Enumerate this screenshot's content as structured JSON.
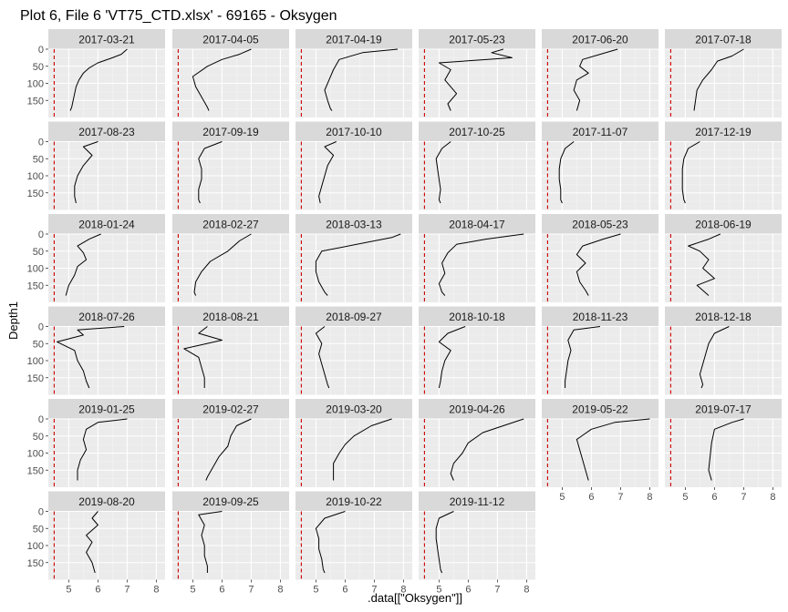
{
  "chart_data": {
    "type": "line",
    "title": "Plot 6, File 6 'VT75_CTD.xlsx' - 69165  -  Oksygen",
    "xlabel": ".data[[\"Oksygen\"]]",
    "ylabel": "Depth1",
    "xlim": [
      4.3,
      8.3
    ],
    "ylim": [
      0,
      200
    ],
    "y_reversed": true,
    "x_ticks": [
      5,
      6,
      7,
      8
    ],
    "y_ticks": [
      0,
      50,
      100,
      150
    ],
    "reference_line": {
      "x": 4.5,
      "color": "#cc0000",
      "style": "dashed"
    },
    "grid": true,
    "facets": [
      {
        "label": "2017-03-21",
        "profile": [
          [
            7.0,
            0
          ],
          [
            6.8,
            15
          ],
          [
            6.5,
            25
          ],
          [
            6.0,
            40
          ],
          [
            5.7,
            55
          ],
          [
            5.5,
            70
          ],
          [
            5.35,
            90
          ],
          [
            5.25,
            110
          ],
          [
            5.2,
            130
          ],
          [
            5.15,
            150
          ],
          [
            5.1,
            170
          ],
          [
            5.05,
            180
          ]
        ]
      },
      {
        "label": "2017-04-05",
        "profile": [
          [
            7.0,
            0
          ],
          [
            6.6,
            15
          ],
          [
            6.0,
            30
          ],
          [
            5.5,
            50
          ],
          [
            5.0,
            80
          ],
          [
            5.1,
            110
          ],
          [
            5.3,
            140
          ],
          [
            5.5,
            170
          ],
          [
            5.55,
            180
          ]
        ]
      },
      {
        "label": "2017-04-19",
        "profile": [
          [
            7.8,
            0
          ],
          [
            6.6,
            10
          ],
          [
            5.8,
            30
          ],
          [
            5.6,
            60
          ],
          [
            5.45,
            90
          ],
          [
            5.3,
            120
          ],
          [
            5.4,
            150
          ],
          [
            5.5,
            175
          ],
          [
            5.55,
            180
          ]
        ]
      },
      {
        "label": "2017-05-23",
        "profile": [
          [
            7.2,
            0
          ],
          [
            6.8,
            10
          ],
          [
            7.5,
            25
          ],
          [
            5.0,
            40
          ],
          [
            5.4,
            60
          ],
          [
            5.2,
            90
          ],
          [
            5.6,
            130
          ],
          [
            5.3,
            160
          ],
          [
            5.4,
            180
          ]
        ]
      },
      {
        "label": "2017-06-20",
        "profile": [
          [
            6.9,
            0
          ],
          [
            6.3,
            15
          ],
          [
            5.7,
            30
          ],
          [
            5.6,
            50
          ],
          [
            5.9,
            70
          ],
          [
            5.5,
            90
          ],
          [
            5.4,
            120
          ],
          [
            5.6,
            150
          ],
          [
            5.5,
            180
          ]
        ]
      },
      {
        "label": "2017-07-18",
        "profile": [
          [
            7.0,
            0
          ],
          [
            6.6,
            20
          ],
          [
            6.1,
            35
          ],
          [
            5.9,
            60
          ],
          [
            5.6,
            90
          ],
          [
            5.4,
            120
          ],
          [
            5.35,
            150
          ],
          [
            5.3,
            180
          ]
        ]
      },
      {
        "label": "2017-08-23",
        "profile": [
          [
            6.0,
            0
          ],
          [
            5.5,
            15
          ],
          [
            5.8,
            40
          ],
          [
            5.5,
            70
          ],
          [
            5.3,
            100
          ],
          [
            5.2,
            130
          ],
          [
            5.2,
            160
          ],
          [
            5.25,
            180
          ]
        ]
      },
      {
        "label": "2017-09-19",
        "profile": [
          [
            6.0,
            0
          ],
          [
            5.4,
            20
          ],
          [
            5.2,
            50
          ],
          [
            5.3,
            80
          ],
          [
            5.3,
            110
          ],
          [
            5.2,
            140
          ],
          [
            5.2,
            170
          ],
          [
            5.25,
            180
          ]
        ]
      },
      {
        "label": "2017-10-10",
        "profile": [
          [
            5.7,
            0
          ],
          [
            5.3,
            15
          ],
          [
            5.6,
            40
          ],
          [
            5.4,
            70
          ],
          [
            5.3,
            100
          ],
          [
            5.2,
            130
          ],
          [
            5.1,
            160
          ],
          [
            5.15,
            180
          ]
        ]
      },
      {
        "label": "2017-10-25",
        "profile": [
          [
            5.4,
            0
          ],
          [
            5.1,
            20
          ],
          [
            4.9,
            50
          ],
          [
            4.95,
            80
          ],
          [
            5.0,
            110
          ],
          [
            5.05,
            140
          ],
          [
            5.0,
            170
          ],
          [
            5.05,
            180
          ]
        ]
      },
      {
        "label": "2017-11-07",
        "profile": [
          [
            5.4,
            0
          ],
          [
            5.1,
            20
          ],
          [
            4.95,
            50
          ],
          [
            4.9,
            80
          ],
          [
            4.9,
            110
          ],
          [
            4.95,
            140
          ],
          [
            4.95,
            170
          ],
          [
            5.0,
            180
          ]
        ]
      },
      {
        "label": "2017-12-19",
        "profile": [
          [
            5.5,
            0
          ],
          [
            5.1,
            20
          ],
          [
            4.95,
            50
          ],
          [
            4.9,
            80
          ],
          [
            4.9,
            110
          ],
          [
            4.9,
            140
          ],
          [
            4.95,
            170
          ],
          [
            5.0,
            180
          ]
        ]
      },
      {
        "label": "2018-01-24",
        "profile": [
          [
            6.1,
            0
          ],
          [
            5.7,
            15
          ],
          [
            5.3,
            35
          ],
          [
            5.5,
            55
          ],
          [
            5.6,
            75
          ],
          [
            5.3,
            95
          ],
          [
            5.2,
            120
          ],
          [
            5.0,
            150
          ],
          [
            4.9,
            180
          ]
        ]
      },
      {
        "label": "2018-02-27",
        "profile": [
          [
            7.0,
            0
          ],
          [
            6.6,
            20
          ],
          [
            6.2,
            50
          ],
          [
            5.6,
            80
          ],
          [
            5.3,
            110
          ],
          [
            5.1,
            140
          ],
          [
            5.05,
            170
          ],
          [
            5.1,
            180
          ]
        ]
      },
      {
        "label": "2018-03-13",
        "profile": [
          [
            7.9,
            0
          ],
          [
            7.6,
            10
          ],
          [
            5.2,
            50
          ],
          [
            5.0,
            80
          ],
          [
            5.0,
            110
          ],
          [
            5.1,
            140
          ],
          [
            5.3,
            170
          ],
          [
            5.4,
            180
          ]
        ]
      },
      {
        "label": "2018-04-17",
        "profile": [
          [
            7.9,
            0
          ],
          [
            6.6,
            15
          ],
          [
            5.6,
            30
          ],
          [
            5.3,
            55
          ],
          [
            5.1,
            85
          ],
          [
            5.2,
            115
          ],
          [
            5.0,
            145
          ],
          [
            5.1,
            170
          ],
          [
            5.2,
            180
          ]
        ]
      },
      {
        "label": "2018-05-23",
        "profile": [
          [
            7.0,
            0
          ],
          [
            6.4,
            15
          ],
          [
            5.7,
            35
          ],
          [
            5.5,
            60
          ],
          [
            5.8,
            85
          ],
          [
            5.5,
            110
          ],
          [
            5.6,
            140
          ],
          [
            5.8,
            165
          ],
          [
            5.9,
            180
          ]
        ]
      },
      {
        "label": "2018-06-19",
        "profile": [
          [
            6.2,
            0
          ],
          [
            5.8,
            15
          ],
          [
            5.1,
            35
          ],
          [
            5.5,
            50
          ],
          [
            5.8,
            75
          ],
          [
            5.6,
            100
          ],
          [
            6.0,
            130
          ],
          [
            5.4,
            150
          ],
          [
            5.8,
            180
          ]
        ]
      },
      {
        "label": "2018-07-26",
        "profile": [
          [
            6.9,
            0
          ],
          [
            5.3,
            10
          ],
          [
            5.5,
            25
          ],
          [
            4.6,
            45
          ],
          [
            5.2,
            70
          ],
          [
            5.3,
            100
          ],
          [
            5.5,
            130
          ],
          [
            5.6,
            160
          ],
          [
            5.7,
            180
          ]
        ]
      },
      {
        "label": "2018-08-21",
        "profile": [
          [
            5.5,
            0
          ],
          [
            5.2,
            20
          ],
          [
            6.0,
            40
          ],
          [
            4.7,
            65
          ],
          [
            5.2,
            90
          ],
          [
            5.3,
            120
          ],
          [
            5.4,
            150
          ],
          [
            5.4,
            180
          ]
        ]
      },
      {
        "label": "2018-09-27",
        "profile": [
          [
            5.3,
            0
          ],
          [
            5.0,
            20
          ],
          [
            5.2,
            50
          ],
          [
            5.1,
            80
          ],
          [
            5.2,
            110
          ],
          [
            5.3,
            140
          ],
          [
            5.4,
            170
          ],
          [
            5.45,
            180
          ]
        ]
      },
      {
        "label": "2018-10-18",
        "profile": [
          [
            5.9,
            0
          ],
          [
            5.3,
            20
          ],
          [
            5.0,
            45
          ],
          [
            5.4,
            70
          ],
          [
            5.2,
            100
          ],
          [
            5.1,
            130
          ],
          [
            5.05,
            160
          ],
          [
            5.0,
            180
          ]
        ]
      },
      {
        "label": "2018-11-23",
        "profile": [
          [
            6.3,
            0
          ],
          [
            5.4,
            10
          ],
          [
            5.2,
            40
          ],
          [
            5.3,
            70
          ],
          [
            5.2,
            100
          ],
          [
            5.15,
            130
          ],
          [
            5.1,
            160
          ],
          [
            5.1,
            180
          ]
        ]
      },
      {
        "label": "2018-12-18",
        "profile": [
          [
            6.5,
            0
          ],
          [
            6.0,
            20
          ],
          [
            5.8,
            50
          ],
          [
            5.7,
            80
          ],
          [
            5.6,
            110
          ],
          [
            5.5,
            140
          ],
          [
            5.6,
            170
          ],
          [
            5.55,
            180
          ]
        ]
      },
      {
        "label": "2019-01-25",
        "profile": [
          [
            7.0,
            0
          ],
          [
            6.0,
            10
          ],
          [
            5.6,
            30
          ],
          [
            5.5,
            60
          ],
          [
            5.6,
            90
          ],
          [
            5.4,
            120
          ],
          [
            5.3,
            150
          ],
          [
            5.3,
            180
          ]
        ]
      },
      {
        "label": "2019-02-27",
        "profile": [
          [
            7.0,
            0
          ],
          [
            6.5,
            20
          ],
          [
            6.3,
            50
          ],
          [
            6.2,
            80
          ],
          [
            5.9,
            110
          ],
          [
            5.7,
            140
          ],
          [
            5.5,
            170
          ],
          [
            5.45,
            180
          ]
        ]
      },
      {
        "label": "2019-03-20",
        "profile": [
          [
            7.6,
            0
          ],
          [
            6.9,
            20
          ],
          [
            6.3,
            50
          ],
          [
            6.0,
            75
          ],
          [
            5.8,
            100
          ],
          [
            5.6,
            130
          ],
          [
            5.6,
            160
          ],
          [
            5.6,
            180
          ]
        ]
      },
      {
        "label": "2019-04-26",
        "profile": [
          [
            7.9,
            0
          ],
          [
            7.2,
            20
          ],
          [
            6.5,
            40
          ],
          [
            6.0,
            70
          ],
          [
            5.8,
            100
          ],
          [
            5.5,
            130
          ],
          [
            5.4,
            160
          ],
          [
            5.5,
            180
          ]
        ]
      },
      {
        "label": "2019-05-22",
        "profile": [
          [
            8.0,
            0
          ],
          [
            6.8,
            10
          ],
          [
            6.0,
            30
          ],
          [
            5.5,
            60
          ],
          [
            5.6,
            90
          ],
          [
            5.7,
            120
          ],
          [
            5.8,
            150
          ],
          [
            5.9,
            180
          ]
        ]
      },
      {
        "label": "2019-07-17",
        "profile": [
          [
            7.0,
            0
          ],
          [
            6.6,
            10
          ],
          [
            6.0,
            30
          ],
          [
            5.9,
            70
          ],
          [
            5.85,
            110
          ],
          [
            5.8,
            150
          ],
          [
            5.9,
            180
          ]
        ]
      },
      {
        "label": "2019-08-20",
        "profile": [
          [
            6.0,
            0
          ],
          [
            5.8,
            20
          ],
          [
            6.0,
            40
          ],
          [
            5.6,
            70
          ],
          [
            5.8,
            90
          ],
          [
            5.6,
            120
          ],
          [
            5.8,
            150
          ],
          [
            5.9,
            180
          ]
        ]
      },
      {
        "label": "2019-09-25",
        "profile": [
          [
            6.0,
            0
          ],
          [
            5.2,
            10
          ],
          [
            5.4,
            40
          ],
          [
            5.3,
            70
          ],
          [
            5.4,
            100
          ],
          [
            5.4,
            130
          ],
          [
            5.5,
            160
          ],
          [
            5.5,
            180
          ]
        ]
      },
      {
        "label": "2019-10-22",
        "profile": [
          [
            6.0,
            0
          ],
          [
            5.3,
            20
          ],
          [
            5.0,
            50
          ],
          [
            5.1,
            80
          ],
          [
            5.1,
            110
          ],
          [
            5.2,
            140
          ],
          [
            5.25,
            170
          ],
          [
            5.3,
            180
          ]
        ]
      },
      {
        "label": "2019-11-12",
        "profile": [
          [
            5.5,
            0
          ],
          [
            5.0,
            20
          ],
          [
            4.9,
            50
          ],
          [
            4.9,
            80
          ],
          [
            4.95,
            110
          ],
          [
            5.0,
            140
          ],
          [
            5.05,
            170
          ],
          [
            5.1,
            180
          ]
        ]
      }
    ]
  }
}
